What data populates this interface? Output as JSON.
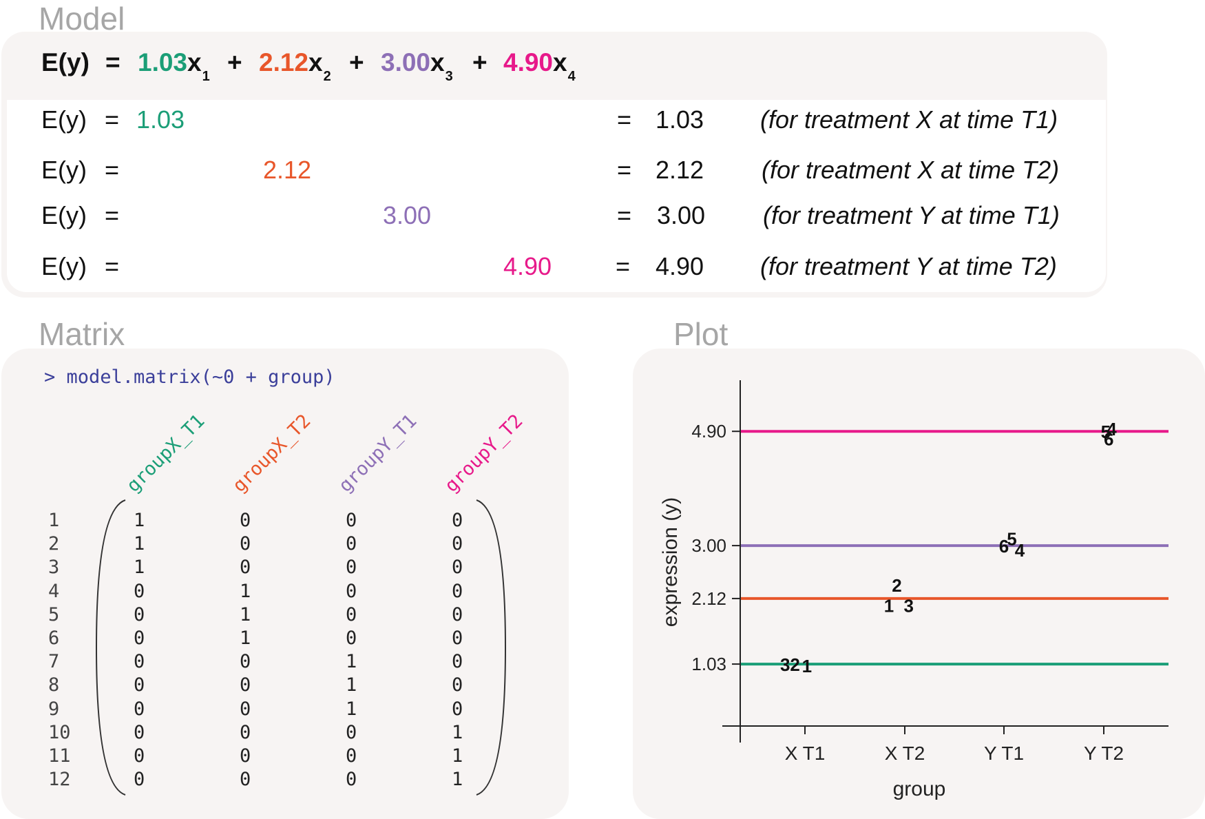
{
  "titles": {
    "model": "Model",
    "matrix": "Matrix",
    "plot": "Plot"
  },
  "colors": {
    "x1": "#1b9e77",
    "x2": "#e8562a",
    "x3": "#8d6fb6",
    "x4": "#e7198a"
  },
  "model": {
    "main": {
      "lhs": "E(y)",
      "eq": "=",
      "c1": "1.03",
      "v1": "x",
      "s1": "1",
      "plus1": "+",
      "c2": "2.12",
      "v2": "x",
      "s2": "2",
      "plus2": "+",
      "c3": "3.00",
      "v3": "x",
      "s3": "3",
      "plus3": "+",
      "c4": "4.90",
      "v4": "x",
      "s4": "4"
    },
    "rows": [
      {
        "lhs": "E(y)",
        "eq": "=",
        "coef": "1.03",
        "eq2": "=",
        "result": "1.03",
        "note": "(for treatment X at time T1)"
      },
      {
        "lhs": "E(y)",
        "eq": "=",
        "coef": "2.12",
        "eq2": "=",
        "result": "2.12",
        "note": "(for treatment X at time T2)"
      },
      {
        "lhs": "E(y)",
        "eq": "=",
        "coef": "3.00",
        "eq2": "=",
        "result": "3.00",
        "note": "(for treatment Y at time T1)"
      },
      {
        "lhs": "E(y)",
        "eq": "=",
        "coef": "4.90",
        "eq2": "=",
        "result": "4.90",
        "note": "(for treatment Y at time T2)"
      }
    ]
  },
  "matrix": {
    "command": "> model.matrix(~0 + group)",
    "columns": [
      "groupX_T1",
      "groupX_T2",
      "groupY_T1",
      "groupY_T2"
    ],
    "row_labels": [
      "1",
      "2",
      "3",
      "4",
      "5",
      "6",
      "7",
      "8",
      "9",
      "10",
      "11",
      "12"
    ],
    "values": [
      [
        "1",
        "0",
        "0",
        "0"
      ],
      [
        "1",
        "0",
        "0",
        "0"
      ],
      [
        "1",
        "0",
        "0",
        "0"
      ],
      [
        "0",
        "1",
        "0",
        "0"
      ],
      [
        "0",
        "1",
        "0",
        "0"
      ],
      [
        "0",
        "1",
        "0",
        "0"
      ],
      [
        "0",
        "0",
        "1",
        "0"
      ],
      [
        "0",
        "0",
        "1",
        "0"
      ],
      [
        "0",
        "0",
        "1",
        "0"
      ],
      [
        "0",
        "0",
        "0",
        "1"
      ],
      [
        "0",
        "0",
        "0",
        "1"
      ],
      [
        "0",
        "0",
        "0",
        "1"
      ]
    ]
  },
  "chart_data": {
    "type": "scatter",
    "xlabel": "group",
    "ylabel": "expression (y)",
    "categories": [
      "X T1",
      "X T2",
      "Y T1",
      "Y T2"
    ],
    "y_ticks": [
      "1.03",
      "2.12",
      "3.00",
      "4.90"
    ],
    "ylim": [
      0.0,
      5.75
    ],
    "hlines": [
      {
        "value": 1.03,
        "color": "#1b9e77"
      },
      {
        "value": 2.12,
        "color": "#e8562a"
      },
      {
        "value": 3.0,
        "color": "#8d6fb6"
      },
      {
        "value": 4.9,
        "color": "#e7198a"
      }
    ],
    "points": [
      {
        "label": "3",
        "category": 0,
        "offset": -0.2,
        "y": 1.03
      },
      {
        "label": "2",
        "category": 0,
        "offset": -0.1,
        "y": 1.03
      },
      {
        "label": "1",
        "category": 0,
        "offset": 0.02,
        "y": 1.01
      },
      {
        "label": "2",
        "category": 1,
        "offset": -0.08,
        "y": 2.35
      },
      {
        "label": "1",
        "category": 1,
        "offset": -0.16,
        "y": 2.01
      },
      {
        "label": "3",
        "category": 1,
        "offset": 0.04,
        "y": 2.01
      },
      {
        "label": "5",
        "category": 2,
        "offset": 0.08,
        "y": 3.12
      },
      {
        "label": "6",
        "category": 2,
        "offset": 0.0,
        "y": 3.0
      },
      {
        "label": "4",
        "category": 2,
        "offset": 0.16,
        "y": 2.93
      },
      {
        "label": "5",
        "category": 3,
        "offset": 0.02,
        "y": 4.9
      },
      {
        "label": "4",
        "category": 3,
        "offset": 0.08,
        "y": 4.95
      },
      {
        "label": "6",
        "category": 3,
        "offset": 0.05,
        "y": 4.78
      }
    ]
  }
}
